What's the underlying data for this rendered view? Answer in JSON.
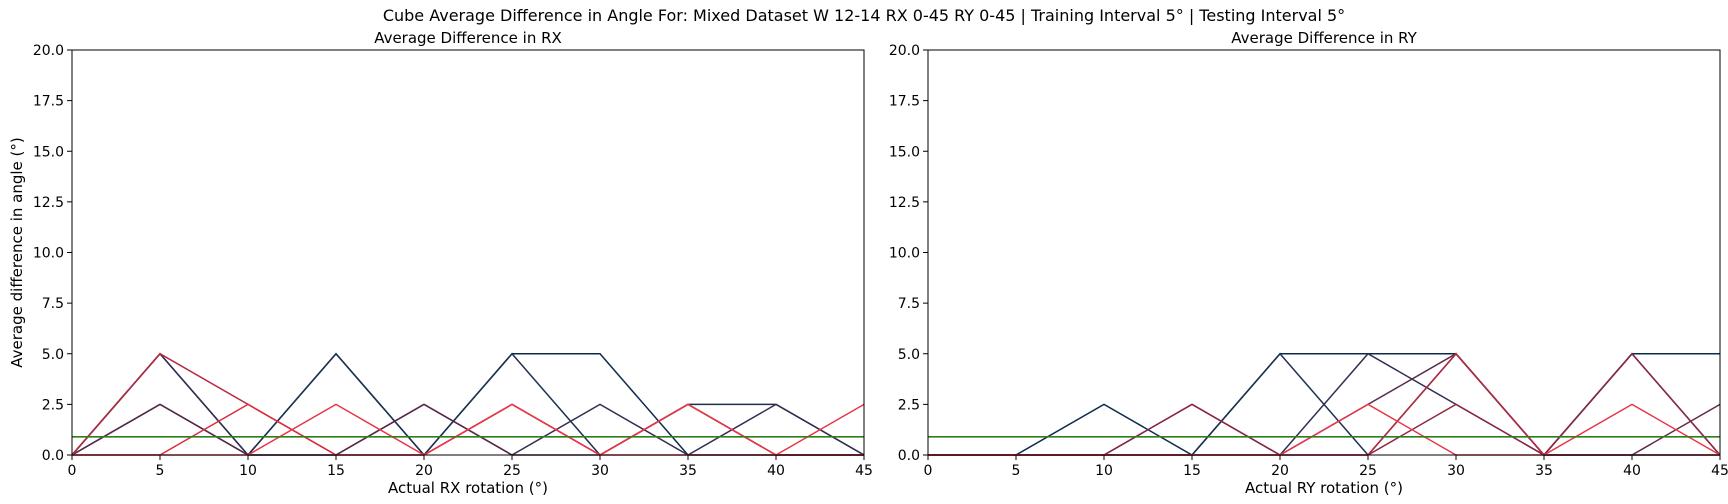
{
  "figure_title": "Cube Average Difference in Angle For: Mixed Dataset W 12-14 RX 0-45 RY 0-45 | Training Interval 5° | Testing Interval 5°",
  "colors": {
    "palette": [
      "#0d2a4a",
      "#1e3050",
      "#332e52",
      "#5a2a4a",
      "#8c2845",
      "#b8283f",
      "#dc2e3f",
      "#e8384a"
    ],
    "mean_line": "#2e7d1f",
    "axis": "#000000"
  },
  "chart_data": [
    {
      "type": "line",
      "title": "Average Difference in RX",
      "xlabel": "Actual RX rotation (°)",
      "ylabel": "Average difference in angle (°)",
      "xlim": [
        0,
        45
      ],
      "ylim": [
        0,
        20
      ],
      "xticks": [
        0,
        5,
        10,
        15,
        20,
        25,
        30,
        35,
        40,
        45
      ],
      "yticks": [
        0.0,
        2.5,
        5.0,
        7.5,
        10.0,
        12.5,
        15.0,
        17.5,
        20.0
      ],
      "x": [
        0,
        5,
        10,
        15,
        20,
        25,
        30,
        35,
        40,
        45
      ],
      "series": [
        {
          "values": [
            0,
            5,
            0,
            5,
            0,
            5,
            5,
            0,
            0,
            0
          ],
          "color": "#0d2a4a"
        },
        {
          "values": [
            0,
            2.5,
            0,
            5,
            0,
            5,
            0,
            2.5,
            2.5,
            0
          ],
          "color": "#1e3050"
        },
        {
          "values": [
            0,
            5,
            0,
            0,
            2.5,
            0,
            2.5,
            0,
            2.5,
            0
          ],
          "color": "#332e52"
        },
        {
          "values": [
            0,
            2.5,
            0,
            0,
            2.5,
            0,
            0,
            2.5,
            0,
            0
          ],
          "color": "#5a2a4a"
        },
        {
          "values": [
            0,
            5,
            2.5,
            0,
            0,
            2.5,
            0,
            2.5,
            0,
            0
          ],
          "color": "#b8283f"
        },
        {
          "values": [
            0,
            0,
            2.5,
            0,
            0,
            2.5,
            0,
            0,
            0,
            0
          ],
          "color": "#dc2e3f"
        },
        {
          "values": [
            0,
            0,
            0,
            2.5,
            0,
            2.5,
            0,
            2.5,
            0,
            2.5
          ],
          "color": "#e8384a"
        }
      ],
      "hline": {
        "y": 0.9,
        "color": "#2e7d1f"
      }
    },
    {
      "type": "line",
      "title": "Average Difference in RY",
      "xlabel": "Actual RY rotation (°)",
      "ylabel": "",
      "xlim": [
        0,
        45
      ],
      "ylim": [
        0,
        20
      ],
      "xticks": [
        0,
        5,
        10,
        15,
        20,
        25,
        30,
        35,
        40,
        45
      ],
      "yticks": [
        0.0,
        2.5,
        5.0,
        7.5,
        10.0,
        12.5,
        15.0,
        17.5,
        20.0
      ],
      "x": [
        0,
        5,
        10,
        15,
        20,
        25,
        30,
        35,
        40,
        45
      ],
      "series": [
        {
          "values": [
            0,
            0,
            2.5,
            0,
            5,
            5,
            5,
            0,
            5,
            5
          ],
          "color": "#0d2a4a"
        },
        {
          "values": [
            0,
            0,
            0,
            0,
            5,
            0,
            5,
            0,
            0,
            0
          ],
          "color": "#1e3050"
        },
        {
          "values": [
            0,
            0,
            0,
            0,
            0,
            5,
            2.5,
            0,
            5,
            0
          ],
          "color": "#332e52"
        },
        {
          "values": [
            0,
            0,
            0,
            2.5,
            0,
            2.5,
            5,
            0,
            0,
            2.5
          ],
          "color": "#5a2a4a"
        },
        {
          "values": [
            0,
            0,
            0,
            2.5,
            0,
            0,
            2.5,
            0,
            5,
            0
          ],
          "color": "#8c2845"
        },
        {
          "values": [
            0,
            0,
            0,
            0,
            0,
            0,
            5,
            0,
            0,
            0
          ],
          "color": "#b8283f"
        },
        {
          "values": [
            0,
            0,
            0,
            0,
            0,
            2.5,
            0,
            0,
            2.5,
            0
          ],
          "color": "#e8384a"
        }
      ],
      "hline": {
        "y": 0.9,
        "color": "#2e7d1f"
      }
    }
  ]
}
